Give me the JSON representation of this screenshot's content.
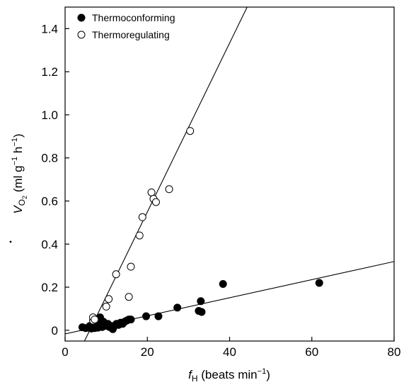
{
  "chart_data": {
    "type": "scatter",
    "title": "",
    "xlabel": {
      "symbol": "f",
      "subscript": "H",
      "units": " (beats min",
      "unit_exp": "−1",
      "close": ")"
    },
    "ylabel": {
      "symbol": "V",
      "subscript": "O",
      "subscript_sub": "2",
      "units": " (ml g",
      "exp1": "−1",
      "mid": " h",
      "exp2": "−1",
      "close": ")"
    },
    "xlim": [
      0,
      80
    ],
    "ylim": [
      -0.05,
      1.5
    ],
    "xticks": [
      0,
      20,
      40,
      60,
      80
    ],
    "xtick_labels": [
      "0",
      "20",
      "40",
      "60",
      "80"
    ],
    "yticks": [
      0,
      0.2,
      0.4,
      0.6,
      0.8,
      1.0,
      1.2,
      1.4
    ],
    "ytick_labels": [
      "0",
      "0.2",
      "0.4",
      "0.6",
      "0.8",
      "1.0",
      "1.2",
      "1.4"
    ],
    "grid": false,
    "legend_position": "top-left",
    "series": [
      {
        "name": "Thermoconforming",
        "marker": "filled-circle",
        "color": "#000000",
        "points": [
          [
            4.2,
            0.014
          ],
          [
            5.0,
            0.01
          ],
          [
            5.6,
            0.012
          ],
          [
            6.0,
            0.02
          ],
          [
            6.4,
            0.008
          ],
          [
            6.8,
            0.015
          ],
          [
            7.2,
            0.01
          ],
          [
            7.6,
            0.02
          ],
          [
            8.0,
            0.012
          ],
          [
            8.3,
            0.025
          ],
          [
            8.6,
            0.03
          ],
          [
            9.0,
            0.015
          ],
          [
            9.3,
            0.04
          ],
          [
            9.6,
            0.02
          ],
          [
            10.0,
            0.025
          ],
          [
            10.4,
            0.03
          ],
          [
            10.8,
            0.015
          ],
          [
            11.2,
            0.02
          ],
          [
            11.6,
            0.005
          ],
          [
            12.0,
            0.02
          ],
          [
            12.5,
            0.03
          ],
          [
            13.0,
            0.025
          ],
          [
            13.5,
            0.035
          ],
          [
            14.0,
            0.03
          ],
          [
            14.5,
            0.04
          ],
          [
            15.0,
            0.045
          ],
          [
            15.5,
            0.05
          ],
          [
            16.0,
            0.05
          ],
          [
            8.5,
            0.06
          ],
          [
            19.7,
            0.065
          ],
          [
            22.7,
            0.065
          ],
          [
            27.3,
            0.105
          ],
          [
            32.5,
            0.09
          ],
          [
            33.0,
            0.135
          ],
          [
            33.2,
            0.085
          ],
          [
            38.4,
            0.215
          ],
          [
            61.8,
            0.22
          ]
        ],
        "fit_line": {
          "slope": 0.0042,
          "intercept": -0.017
        }
      },
      {
        "name": "Thermoregulating",
        "marker": "open-circle",
        "color": "#000000",
        "points": [
          [
            6.8,
            0.045
          ],
          [
            6.8,
            0.06
          ],
          [
            7.2,
            0.05
          ],
          [
            10.0,
            0.11
          ],
          [
            10.6,
            0.145
          ],
          [
            12.4,
            0.26
          ],
          [
            15.5,
            0.155
          ],
          [
            16.0,
            0.295
          ],
          [
            18.1,
            0.44
          ],
          [
            18.8,
            0.525
          ],
          [
            21.0,
            0.64
          ],
          [
            21.5,
            0.61
          ],
          [
            22.1,
            0.595
          ],
          [
            25.3,
            0.655
          ],
          [
            30.4,
            0.925
          ]
        ],
        "fit_line": {
          "slope": 0.0392,
          "intercept": -0.235
        }
      }
    ]
  }
}
